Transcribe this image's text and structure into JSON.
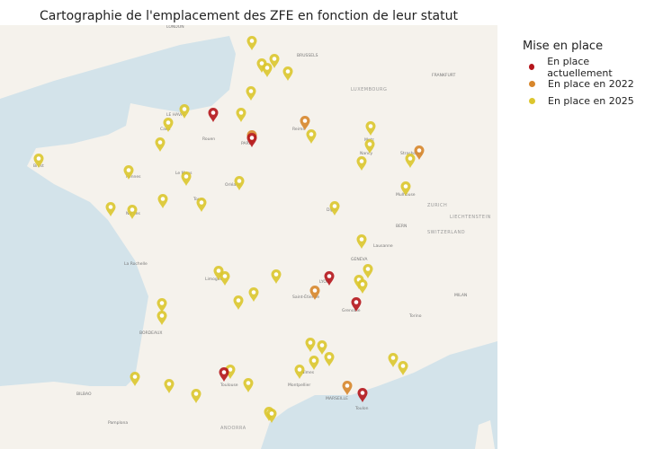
{
  "title": "Cartographie de l'emplacement des ZFE en fonction de leur statut",
  "legend": {
    "title": "Mise en place",
    "items": [
      {
        "label": "En place actuellement",
        "color": "#b5151b"
      },
      {
        "label": "En place en 2022",
        "color": "#d7862b"
      },
      {
        "label": "En place en 2025",
        "color": "#dcc62e"
      }
    ]
  },
  "map_labels": [
    "LONDON",
    "BRUSSELS",
    "LUXEMBOURG",
    "FRANKFURT",
    "PARIS",
    "Rouen",
    "LE HAVRE",
    "Caen",
    "Rennes",
    "Brest",
    "Nantes",
    "Le Mans",
    "Tours",
    "Orléans",
    "Reims",
    "Metz",
    "Nancy",
    "Strasbourg",
    "Mulhouse",
    "Dijon",
    "ZURICH",
    "BERN",
    "SWITZERLAND",
    "LIECHTENSTEIN",
    "GENEVA",
    "Lausanne",
    "LYON",
    "Saint-Étienne",
    "Grenoble",
    "MILAN",
    "Torino",
    "Limoges",
    "La Rochelle",
    "BORDEAUX",
    "Toulouse",
    "Montpellier",
    "Nîmes",
    "MARSEILLE",
    "Toulon",
    "ANDORRA",
    "BILBAO",
    "Pamplona"
  ],
  "markers": [
    "y",
    "y",
    "y",
    "y",
    "y",
    "y",
    "y",
    "y",
    "y",
    "y",
    "y",
    "y",
    "y",
    "y",
    "y",
    "y",
    "y",
    "y",
    "y",
    "y",
    "y",
    "y",
    "y",
    "y",
    "y",
    "y",
    "y",
    "y",
    "y",
    "y",
    "y",
    "y",
    "y",
    "y",
    "y",
    "y",
    "y",
    "y",
    "y",
    "y",
    "y",
    "y",
    "y",
    "y",
    "y",
    "y",
    "y",
    "y",
    "y",
    "y",
    "o",
    "o",
    "o",
    "o",
    "o",
    "r",
    "r",
    "r",
    "r",
    "r",
    "r"
  ]
}
